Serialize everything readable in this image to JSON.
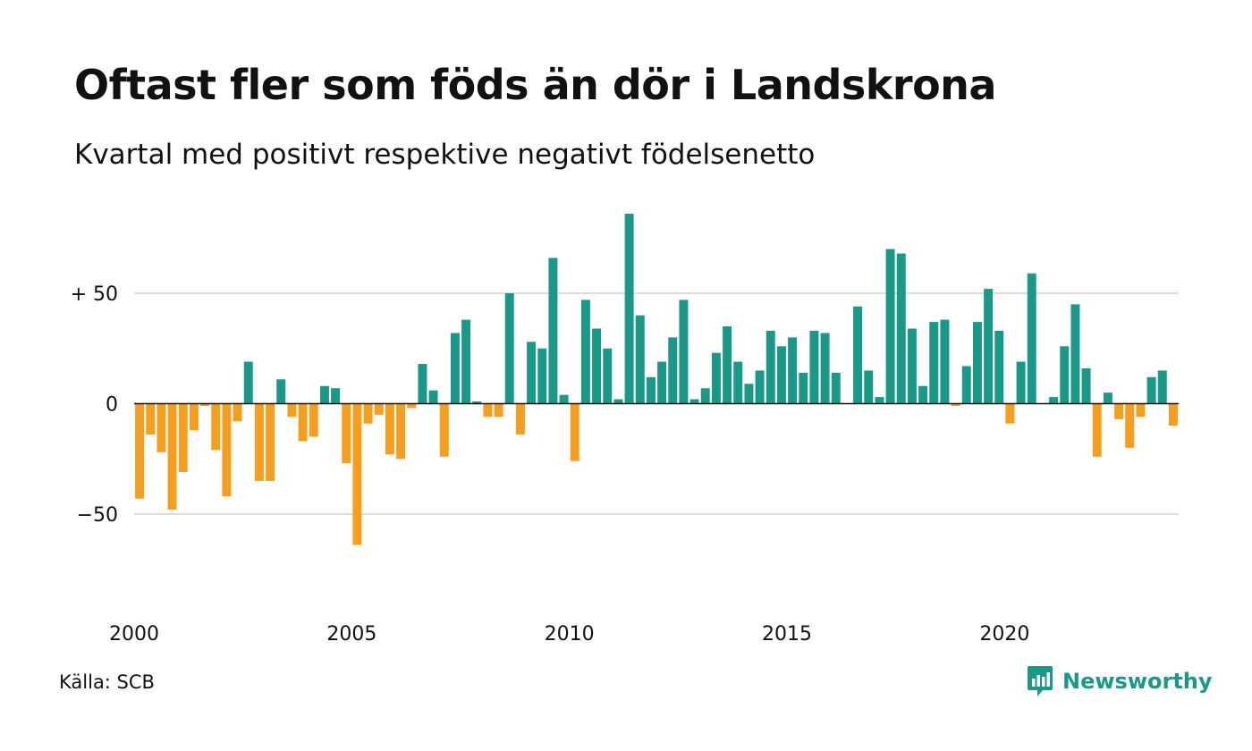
{
  "title": "Oftast fler som föds än dör i Landskrona",
  "subtitle": "Kvartal med positivt respektive negativt födelsenetto",
  "source": "Källa: SCB",
  "brand": "Newsworthy",
  "colors": {
    "positive": "#1a9988",
    "negative": "#f59e1f",
    "grid": "#dddddd",
    "zero_line": "#111111",
    "brand": "#1a9988"
  },
  "chart_data": {
    "type": "bar",
    "x_start": "2000 Q1",
    "x_ticks": [
      "2000",
      "2005",
      "2010",
      "2015",
      "2020"
    ],
    "y_ticks": [
      {
        "value": 50,
        "label": "+ 50"
      },
      {
        "value": 0,
        "label": "0"
      },
      {
        "value": -50,
        "label": "−50"
      }
    ],
    "ylim": [
      -80,
      87
    ],
    "grid": true,
    "values": [
      -43,
      -14,
      -22,
      -48,
      -31,
      -12,
      -1,
      -21,
      -42,
      -8,
      19,
      -35,
      -35,
      11,
      -6,
      -17,
      -15,
      8,
      7,
      -27,
      -64,
      -9,
      -5,
      -23,
      -25,
      -2,
      18,
      6,
      -24,
      32,
      38,
      1,
      -6,
      -6,
      50,
      -14,
      28,
      25,
      66,
      4,
      -26,
      47,
      34,
      25,
      2,
      86,
      40,
      12,
      19,
      30,
      47,
      2,
      7,
      23,
      35,
      19,
      9,
      15,
      33,
      26,
      30,
      14,
      33,
      32,
      14,
      0,
      44,
      15,
      3,
      70,
      68,
      34,
      8,
      37,
      38,
      -1,
      17,
      37,
      52,
      33,
      -9,
      19,
      59,
      0,
      3,
      26,
      45,
      16,
      -24,
      5,
      -7,
      -20,
      -6,
      12,
      15,
      -10
    ]
  }
}
